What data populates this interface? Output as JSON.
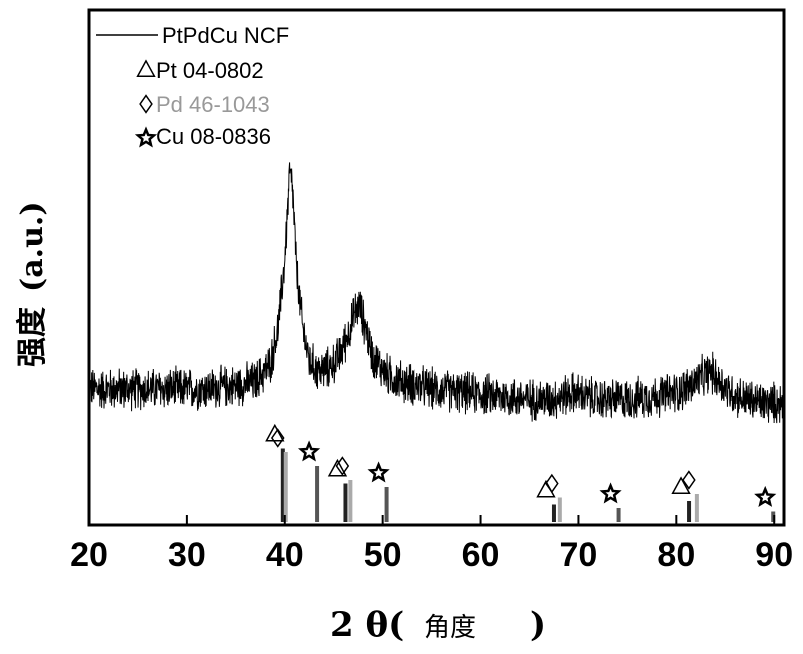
{
  "chart_data": {
    "type": "line",
    "xlabel": "2 θ(",
    "xlabel_cn": "角度",
    "xlabel_close": ")",
    "ylabel_cn": "强度",
    "ylabel_unit": "(a.u.)",
    "xlim": [
      20,
      91
    ],
    "xticks": [
      "20",
      "30",
      "40",
      "50",
      "60",
      "70",
      "80",
      "90"
    ],
    "grid": false,
    "legend_position": "top-left",
    "series": [
      {
        "name": "PtPdCu NCF",
        "color": "#000000",
        "noise": 0.05,
        "x": [
          20,
          24,
          28,
          32,
          35,
          37,
          38.5,
          39.3,
          40,
          40.5,
          40.8,
          41.2,
          41.8,
          42.5,
          43.5,
          44.5,
          45.5,
          46.5,
          47.2,
          47.6,
          48.2,
          49,
          50.5,
          52,
          55,
          58,
          62,
          65,
          67,
          68.5,
          69.5,
          70.5,
          72,
          75,
          78,
          80,
          81.5,
          82.5,
          83.5,
          84.5,
          85.5,
          87,
          89,
          91
        ],
        "y": [
          0.38,
          0.38,
          0.38,
          0.38,
          0.39,
          0.4,
          0.45,
          0.55,
          0.75,
          1.0,
          0.95,
          0.72,
          0.56,
          0.46,
          0.43,
          0.44,
          0.47,
          0.54,
          0.6,
          0.62,
          0.56,
          0.47,
          0.42,
          0.4,
          0.38,
          0.37,
          0.36,
          0.35,
          0.35,
          0.36,
          0.37,
          0.36,
          0.35,
          0.35,
          0.36,
          0.37,
          0.39,
          0.41,
          0.43,
          0.4,
          0.37,
          0.35,
          0.34,
          0.34
        ]
      },
      {
        "name": "Pt 04-0802",
        "marker": "triangle",
        "color": "#222222",
        "lines": [
          39.8,
          46.2,
          67.5,
          81.3
        ],
        "heights": [
          0.21,
          0.11,
          0.05,
          0.06
        ]
      },
      {
        "name": "Pd 46-1043",
        "marker": "diamond",
        "color": "#aaaaaa",
        "lines": [
          40.1,
          46.7,
          68.1,
          82.1
        ],
        "heights": [
          0.2,
          0.12,
          0.07,
          0.08
        ]
      },
      {
        "name": "Cu 08-0836",
        "marker": "star",
        "color": "#555555",
        "lines": [
          43.3,
          50.4,
          74.1,
          89.9
        ],
        "heights": [
          0.16,
          0.1,
          0.04,
          0.03
        ]
      }
    ]
  }
}
